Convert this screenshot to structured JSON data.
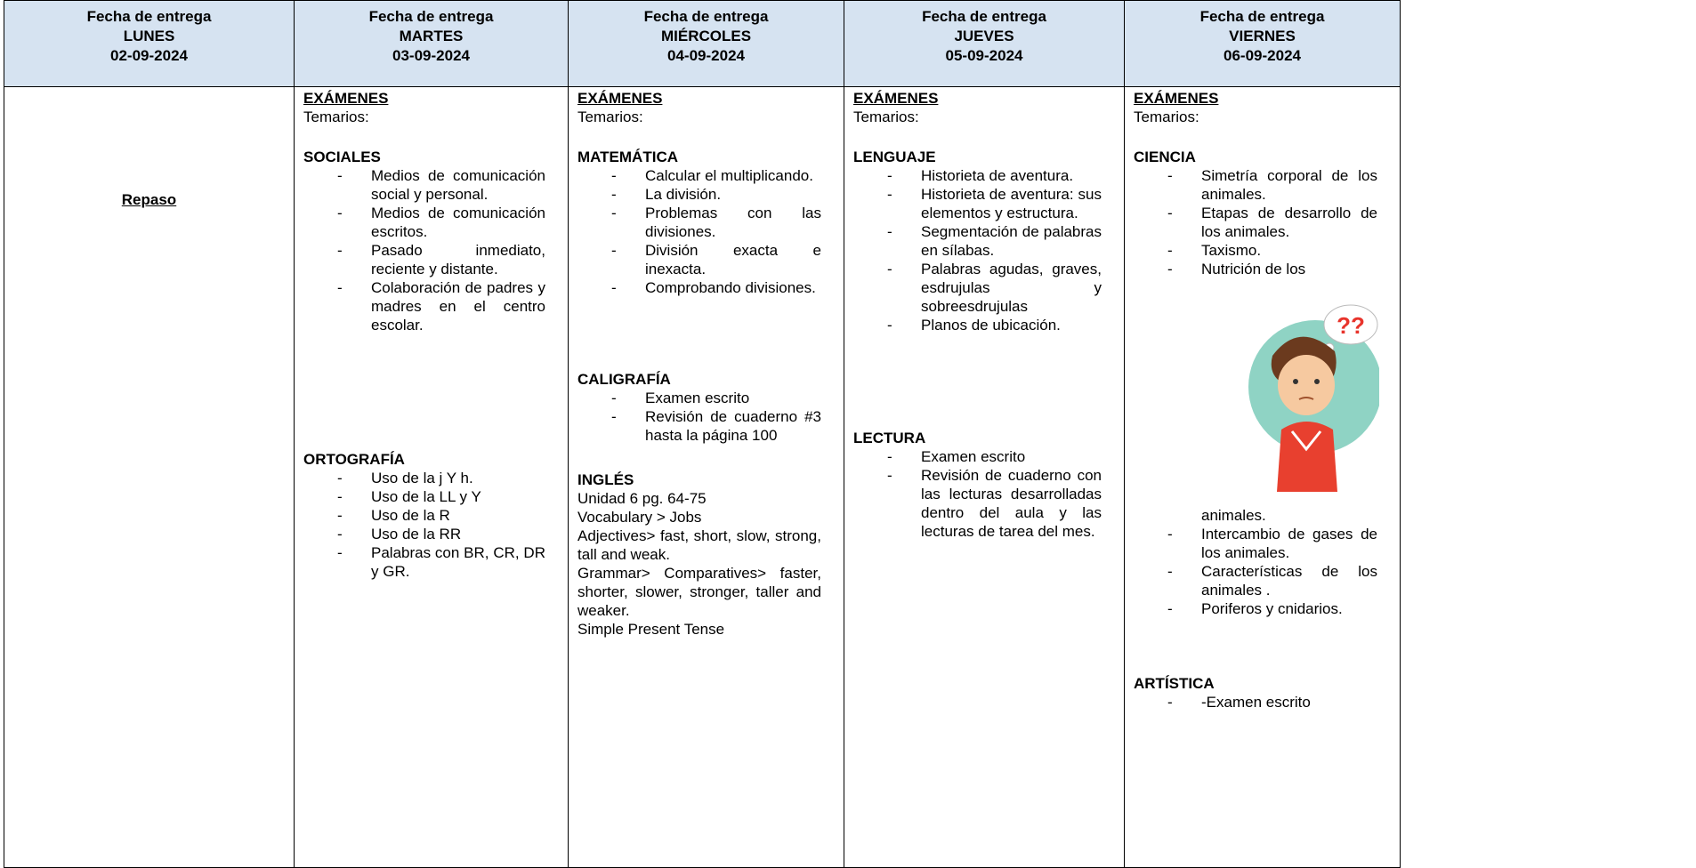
{
  "header": {
    "columns": [
      {
        "label": "Fecha de entrega",
        "day": "LUNES",
        "date": "02-09-2024"
      },
      {
        "label": "Fecha de entrega",
        "day": "MARTES",
        "date": "03-09-2024"
      },
      {
        "label": "Fecha de entrega",
        "day": "MIÉRCOLES",
        "date": "04-09-2024"
      },
      {
        "label": "Fecha de entrega",
        "day": "JUEVES",
        "date": "05-09-2024"
      },
      {
        "label": "Fecha de entrega",
        "day": "VIERNES",
        "date": "06-09-2024"
      }
    ]
  },
  "body": {
    "monday": "Repaso",
    "columns": [
      {
        "heading": "EXÁMENES",
        "subheading": "Temarios:",
        "subjects": [
          {
            "title": "SOCIALES",
            "items": [
              {
                "text": "Medios de comunicación social y personal."
              },
              {
                "text": "Medios de comunicación escritos."
              },
              {
                "text": "Pasado inmediato, reciente y distante."
              },
              {
                "text": "Colaboración de padres y madres en el centro escolar."
              }
            ]
          },
          {
            "title": "ORTOGRAFÍA",
            "items": [
              {
                "text": "Uso de la  j Y h."
              },
              {
                "text": "Uso de la LL y Y"
              },
              {
                "text": "Uso de la R"
              },
              {
                "text": "Uso de la RR"
              },
              {
                "text": "Palabras con BR, CR, DR y GR."
              }
            ]
          }
        ]
      },
      {
        "heading": "EXÁMENES",
        "subheading": "Temarios:",
        "subjects": [
          {
            "title": "MATEMÁTICA",
            "items": [
              {
                "text": "Calcular el multiplicando."
              },
              {
                "text": "La división."
              },
              {
                "text": "Problemas con las divisiones."
              },
              {
                "text": "División exacta e inexacta."
              },
              {
                "text": "Comprobando divisiones."
              }
            ]
          },
          {
            "title": "CALIGRAFÍA",
            "items": [
              {
                "text": "Examen escrito"
              },
              {
                "text": "Revisión de cuaderno #3 hasta la página 100"
              }
            ]
          },
          {
            "title": "INGLÉS",
            "lines": [
              "Unidad 6 pg. 64-75",
              "Vocabulary > Jobs",
              "Adjectives> fast, short, slow, strong, tall and weak.",
              "Grammar> Comparatives> faster, shorter, slower, stronger, taller and weaker.",
              "Simple Present Tense"
            ]
          }
        ]
      },
      {
        "heading": "EXÁMENES",
        "subheading": "Temarios:",
        "subjects": [
          {
            "title": "LENGUAJE",
            "items": [
              {
                "text": "Historieta de aventura."
              },
              {
                "text": "Historieta de aventura: sus elementos y estructura."
              },
              {
                "text": "Segmentación de palabras en sílabas."
              },
              {
                "text": "Palabras agudas, graves, esdrujulas y sobreesdrujulas"
              },
              {
                "text": "Planos de ubicación."
              }
            ]
          },
          {
            "title": "LECTURA",
            "items": [
              {
                "text": "Examen escrito"
              },
              {
                "text": "Revisión de cuaderno con las lecturas desarrolladas dentro del aula y las lecturas de tarea del mes."
              }
            ]
          }
        ]
      },
      {
        "heading": "EXÁMENES",
        "subheading": "Temarios:",
        "subjects": [
          {
            "title": "CIENCIA",
            "items": [
              {
                "text": "Simetría corporal de los animales."
              },
              {
                "text": "Etapas de desarrollo de los animales."
              },
              {
                "text": "Taxismo."
              },
              {
                "text": "Nutrición de los",
                "continued": "animales."
              },
              {
                "text": "Intercambio de gases de los animales."
              },
              {
                "text": "Características de los animales ."
              },
              {
                "text": "Poriferos y cnidarios."
              }
            ]
          },
          {
            "title": "ARTÍSTICA",
            "items": [
              {
                "text": "-Examen escrito"
              }
            ]
          }
        ]
      }
    ]
  }
}
